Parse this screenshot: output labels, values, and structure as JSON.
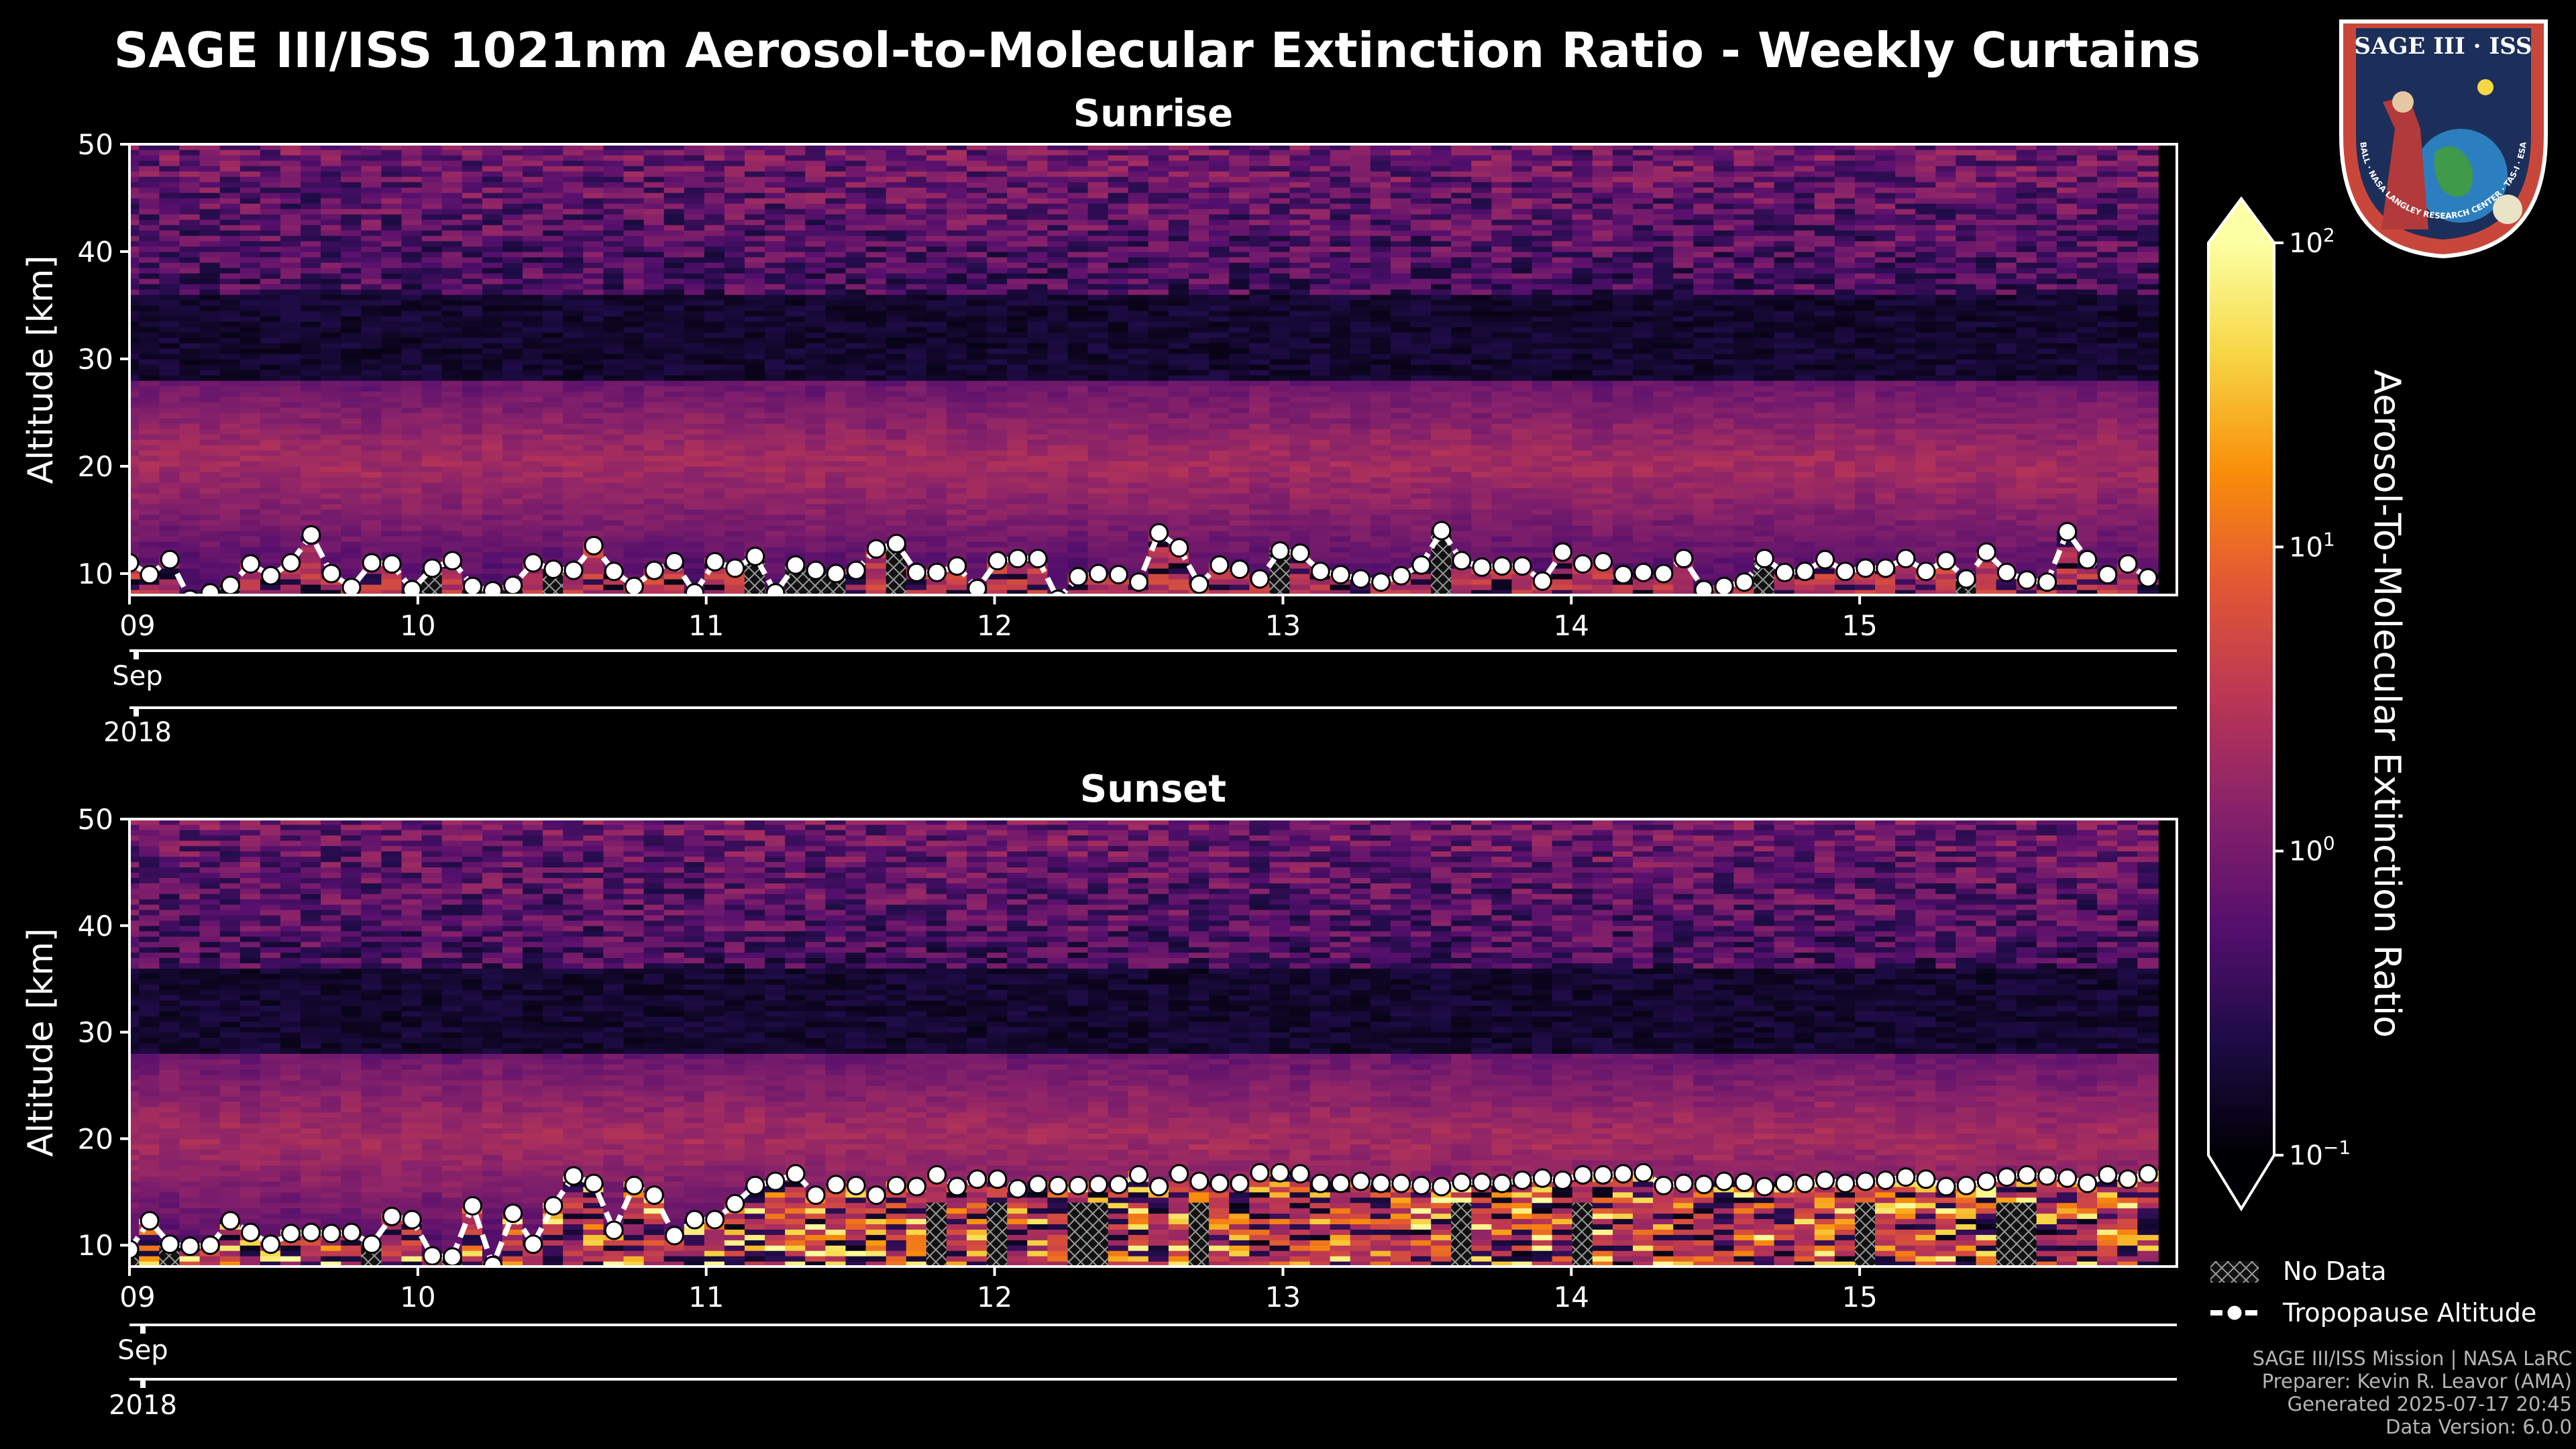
{
  "figure": {
    "title": "SAGE III/ISS 1021nm Aerosol-to-Molecular Extinction Ratio - Weekly Curtains",
    "credits": [
      "SAGE III/ISS Mission | NASA LaRC",
      "Preparer: Kevin R. Leavor (AMA)",
      "Generated 2025-07-17 20:45",
      "Data Version: 6.0.0"
    ]
  },
  "logo": {
    "top_text": "SAGE III · ISS",
    "ring_text": "BALL · NASA LANGLEY RESEARCH CENTER · TAS-I · ESA"
  },
  "legend": {
    "no_data": "No Data",
    "tropopause": "Tropopause Altitude"
  },
  "colorbar": {
    "label": "Aerosol-To-Molecular Extinction Ratio",
    "ticks": [
      "10^2",
      "10^1",
      "10^0",
      "10^-1"
    ],
    "range_log": [
      -1,
      2
    ]
  },
  "colors": {
    "background": "#000000",
    "tropopause_marker": "#ffffff",
    "axis": "#ffffff"
  },
  "chart_data": [
    {
      "type": "heatmap",
      "title": "Sunrise",
      "ylabel": "Altitude [km]",
      "ylim": [
        8,
        50
      ],
      "yticks": [
        10,
        20,
        30,
        40,
        50
      ],
      "xlim": [
        9.0,
        16.1
      ],
      "xticks": [
        {
          "v": 9.0,
          "label": "09"
        },
        {
          "v": 10.0,
          "label": "10"
        },
        {
          "v": 11.0,
          "label": "11"
        },
        {
          "v": 12.0,
          "label": "12"
        },
        {
          "v": 13.0,
          "label": "13"
        },
        {
          "v": 14.0,
          "label": "14"
        },
        {
          "v": 15.0,
          "label": "15"
        }
      ],
      "month_label": "Sep",
      "year_label": "2018",
      "tropopause_x": [
        9.0,
        9.07,
        9.14,
        9.21,
        9.28,
        9.35,
        9.42,
        9.49,
        9.56,
        9.63,
        9.7,
        9.77,
        9.84,
        9.91,
        9.98,
        10.05,
        10.12,
        10.19,
        10.26,
        10.33,
        10.4,
        10.47,
        10.54,
        10.61,
        10.68,
        10.75,
        10.82,
        10.89,
        10.96,
        11.03,
        11.1,
        11.17,
        11.24,
        11.31,
        11.38,
        11.45,
        11.52,
        11.59,
        11.66,
        11.73,
        11.8,
        11.87,
        11.94,
        12.01,
        12.08,
        12.15,
        12.22,
        12.29,
        12.36,
        12.43,
        12.5,
        12.57,
        12.64,
        12.71,
        12.78,
        12.85,
        12.92,
        12.99,
        13.06,
        13.13,
        13.2,
        13.27,
        13.34,
        13.41,
        13.48,
        13.55,
        13.62,
        13.69,
        13.76,
        13.83,
        13.9,
        13.97,
        14.04,
        14.11,
        14.18,
        14.25,
        14.32,
        14.39,
        14.46,
        14.53,
        14.6,
        14.67,
        14.74,
        14.81,
        14.88,
        14.95,
        15.02,
        15.09,
        15.16,
        15.23,
        15.3,
        15.37,
        15.44,
        15.51,
        15.58,
        15.65,
        15.72,
        15.79,
        15.86,
        15.93,
        16.0
      ],
      "tropopause_km": [
        11.0,
        9.9,
        11.3,
        7.6,
        8.2,
        8.9,
        10.9,
        9.8,
        11.0,
        13.6,
        10.0,
        8.7,
        11.0,
        10.9,
        8.5,
        10.5,
        11.2,
        8.8,
        8.4,
        8.9,
        11.0,
        10.4,
        10.3,
        12.6,
        10.2,
        8.8,
        10.3,
        11.1,
        8.2,
        11.1,
        10.5,
        11.6,
        8.2,
        10.8,
        10.3,
        10.0,
        10.3,
        12.3,
        12.8,
        10.1,
        10.1,
        10.7,
        8.6,
        11.2,
        11.4,
        11.4,
        7.6,
        9.7,
        10.0,
        9.9,
        9.2,
        13.8,
        12.4,
        9.0,
        10.8,
        10.4,
        9.5,
        12.1,
        11.9,
        10.2,
        9.9,
        9.5,
        9.2,
        9.8,
        10.8,
        14.0,
        11.2,
        10.6,
        10.7,
        10.7,
        9.3,
        12.0,
        10.9,
        11.1,
        9.9,
        10.1,
        10.0,
        11.4,
        8.5,
        8.8,
        9.2,
        11.4,
        10.1,
        10.2,
        11.3,
        10.2,
        10.5,
        10.5,
        11.4,
        10.2,
        11.2,
        9.5,
        12.0,
        10.1,
        9.4,
        9.2,
        13.9,
        11.3,
        9.9,
        10.9,
        9.6
      ]
    },
    {
      "type": "heatmap",
      "title": "Sunset",
      "ylabel": "Altitude [km]",
      "ylim": [
        8,
        50
      ],
      "yticks": [
        10,
        20,
        30,
        40,
        50
      ],
      "xlim": [
        9.0,
        16.1
      ],
      "xticks": [
        {
          "v": 9.0,
          "label": "09"
        },
        {
          "v": 10.0,
          "label": "10"
        },
        {
          "v": 11.0,
          "label": "11"
        },
        {
          "v": 12.0,
          "label": "12"
        },
        {
          "v": 13.0,
          "label": "13"
        },
        {
          "v": 14.0,
          "label": "14"
        },
        {
          "v": 15.0,
          "label": "15"
        }
      ],
      "month_label": "Sep",
      "year_label": "2018",
      "tropopause_x": [
        9.0,
        9.07,
        9.14,
        9.21,
        9.28,
        9.35,
        9.42,
        9.49,
        9.56,
        9.63,
        9.7,
        9.77,
        9.84,
        9.91,
        9.98,
        10.05,
        10.12,
        10.19,
        10.26,
        10.33,
        10.4,
        10.47,
        10.54,
        10.61,
        10.68,
        10.75,
        10.82,
        10.89,
        10.96,
        11.03,
        11.1,
        11.17,
        11.24,
        11.31,
        11.38,
        11.45,
        11.52,
        11.59,
        11.66,
        11.73,
        11.8,
        11.87,
        11.94,
        12.01,
        12.08,
        12.15,
        12.22,
        12.29,
        12.36,
        12.43,
        12.5,
        12.57,
        12.64,
        12.71,
        12.78,
        12.85,
        12.92,
        12.99,
        13.06,
        13.13,
        13.2,
        13.27,
        13.34,
        13.41,
        13.48,
        13.55,
        13.62,
        13.69,
        13.76,
        13.83,
        13.9,
        13.97,
        14.04,
        14.11,
        14.18,
        14.25,
        14.32,
        14.39,
        14.46,
        14.53,
        14.6,
        14.67,
        14.74,
        14.81,
        14.88,
        14.95,
        15.02,
        15.09,
        15.16,
        15.23,
        15.3,
        15.37,
        15.44,
        15.51,
        15.58,
        15.65,
        15.72,
        15.79,
        15.86,
        15.93,
        16.0
      ],
      "tropopause_km": [
        9.6,
        12.3,
        10.1,
        9.9,
        10.0,
        12.3,
        11.2,
        10.1,
        11.1,
        11.2,
        11.1,
        11.2,
        10.1,
        12.7,
        12.4,
        9.0,
        8.9,
        13.7,
        8.1,
        13.0,
        10.1,
        13.7,
        16.5,
        15.8,
        11.4,
        15.6,
        14.7,
        10.9,
        12.4,
        12.4,
        13.9,
        15.6,
        16.0,
        16.7,
        14.7,
        15.7,
        15.6,
        14.7,
        15.6,
        15.5,
        16.6,
        15.5,
        16.2,
        16.2,
        15.3,
        15.7,
        15.6,
        15.6,
        15.7,
        15.7,
        16.6,
        15.5,
        16.7,
        16.0,
        15.8,
        15.8,
        16.8,
        16.8,
        16.7,
        15.8,
        15.8,
        16.0,
        15.8,
        15.8,
        15.6,
        15.5,
        15.9,
        15.9,
        15.8,
        16.1,
        16.3,
        16.1,
        16.6,
        16.6,
        16.7,
        16.8,
        15.6,
        15.8,
        15.7,
        16.0,
        15.9,
        15.5,
        15.8,
        15.8,
        16.1,
        15.8,
        16.0,
        16.1,
        16.4,
        16.2,
        15.5,
        15.6,
        16.0,
        16.4,
        16.6,
        16.5,
        16.3,
        15.8,
        16.6,
        16.2,
        16.7
      ]
    }
  ]
}
